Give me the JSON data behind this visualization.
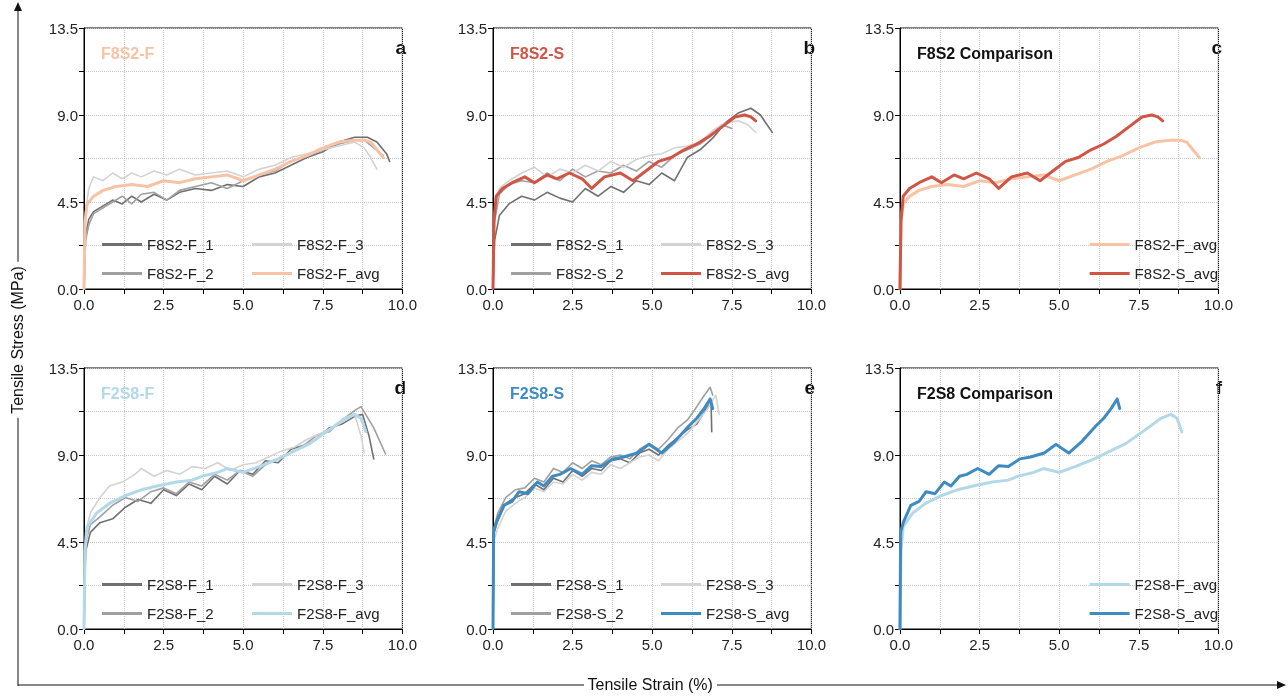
{
  "chart_data": [
    {
      "type": "line",
      "title": "F8S2-F",
      "ylabel": "Tensile Stress (MPa)",
      "annotations": [
        "a"
      ],
      "xlim": [
        0,
        10
      ],
      "ylim": [
        0,
        13.5
      ],
      "xticks": [
        {
          "value": 0,
          "label": "0.0"
        },
        {
          "value": 1.25,
          "label": null
        },
        {
          "value": 2.5,
          "label": "2.5"
        },
        {
          "value": 3.75,
          "label": null
        },
        {
          "value": 5,
          "label": "5.0"
        },
        {
          "value": 6.25,
          "label": null
        },
        {
          "value": 7.5,
          "label": "7.5"
        },
        {
          "value": 8.75,
          "label": null
        },
        {
          "value": 10,
          "label": "10.0"
        }
      ],
      "yticks": [
        {
          "value": 0,
          "label": "0.0"
        },
        {
          "value": 2.25,
          "label": null
        },
        {
          "value": 4.5,
          "label": "4.5"
        },
        {
          "value": 6.75,
          "label": null
        },
        {
          "value": 9,
          "label": "9.0"
        },
        {
          "value": 11.25,
          "label": null
        },
        {
          "value": 13.5,
          "label": "13.5"
        }
      ],
      "grid": true,
      "legend": "bottom",
      "marker": "none",
      "series": [
        {
          "name": "F8S2-F_1",
          "color": "#707070",
          "x": [
            0,
            0.05,
            0.15,
            0.3,
            0.6,
            0.9,
            1.2,
            1.5,
            1.8,
            2.2,
            2.6,
            3.0,
            3.5,
            4.0,
            4.5,
            5.0,
            5.5,
            6.0,
            6.5,
            7.0,
            7.5,
            8.0,
            8.5,
            8.9,
            9.2,
            9.5,
            9.6
          ],
          "values": [
            0,
            2.8,
            3.6,
            4.0,
            4.3,
            4.6,
            4.4,
            4.8,
            4.5,
            4.9,
            4.6,
            5.0,
            5.2,
            5.1,
            5.4,
            5.3,
            5.8,
            6.0,
            6.4,
            6.8,
            7.1,
            7.6,
            7.85,
            7.85,
            7.6,
            7.0,
            6.6
          ]
        },
        {
          "name": "F8S2-F_2",
          "color": "#a0a0a0",
          "x": [
            0,
            0.05,
            0.15,
            0.3,
            0.6,
            0.9,
            1.2,
            1.5,
            1.8,
            2.2,
            2.6,
            3.0,
            3.5,
            4.0,
            4.5,
            5.0,
            5.5,
            6.0,
            6.5,
            7.0,
            7.5,
            8.0,
            8.5,
            8.8,
            9.1,
            9.4
          ],
          "values": [
            0,
            2.5,
            3.3,
            3.9,
            4.2,
            4.5,
            4.8,
            4.4,
            4.9,
            5.0,
            4.6,
            5.1,
            5.3,
            5.5,
            5.2,
            5.6,
            5.9,
            6.1,
            6.6,
            6.9,
            7.2,
            7.5,
            7.7,
            7.7,
            7.3,
            6.9
          ]
        },
        {
          "name": "F8S2-F_3",
          "color": "#d3d3d3",
          "x": [
            0,
            0.05,
            0.15,
            0.3,
            0.6,
            0.9,
            1.2,
            1.5,
            1.8,
            2.2,
            2.6,
            3.0,
            3.5,
            4.0,
            4.5,
            5.0,
            5.5,
            6.0,
            6.5,
            7.0,
            7.5,
            8.0,
            8.5,
            8.8,
            9.0,
            9.2
          ],
          "values": [
            0,
            4.0,
            5.2,
            5.8,
            5.6,
            6.0,
            5.7,
            6.0,
            5.8,
            6.1,
            5.9,
            6.2,
            5.9,
            6.0,
            6.1,
            5.8,
            6.2,
            6.4,
            6.8,
            7.0,
            7.2,
            7.4,
            7.6,
            7.3,
            6.8,
            6.2
          ]
        },
        {
          "name": "F8S2-F_avg",
          "color": "#f8c3a5",
          "x": [
            0,
            0.03,
            0.1,
            0.3,
            0.6,
            1.0,
            1.5,
            2.0,
            2.5,
            3.0,
            3.5,
            4.0,
            4.5,
            5.0,
            5.5,
            6.0,
            6.5,
            7.0,
            7.5,
            8.0,
            8.5,
            8.8,
            9.0,
            9.2,
            9.4
          ],
          "values": [
            0,
            3.5,
            4.4,
            4.8,
            5.1,
            5.3,
            5.4,
            5.3,
            5.6,
            5.5,
            5.7,
            5.8,
            5.9,
            5.6,
            5.9,
            6.2,
            6.6,
            6.9,
            7.3,
            7.6,
            7.7,
            7.7,
            7.6,
            7.2,
            6.8
          ]
        }
      ]
    },
    {
      "type": "line",
      "title": "F8S2-S",
      "annotations": [
        "b"
      ],
      "xlim": [
        0,
        10
      ],
      "ylim": [
        0,
        13.5
      ],
      "xticks": [
        {
          "value": 0,
          "label": "0.0"
        },
        {
          "value": 1.25,
          "label": null
        },
        {
          "value": 2.5,
          "label": "2.5"
        },
        {
          "value": 3.75,
          "label": null
        },
        {
          "value": 5,
          "label": "5.0"
        },
        {
          "value": 6.25,
          "label": null
        },
        {
          "value": 7.5,
          "label": "7.5"
        },
        {
          "value": 8.75,
          "label": null
        },
        {
          "value": 10,
          "label": "10.0"
        }
      ],
      "yticks": [
        {
          "value": 0,
          "label": "0.0"
        },
        {
          "value": 2.25,
          "label": null
        },
        {
          "value": 4.5,
          "label": "4.5"
        },
        {
          "value": 6.75,
          "label": null
        },
        {
          "value": 9,
          "label": "9.0"
        },
        {
          "value": 11.25,
          "label": null
        },
        {
          "value": 13.5,
          "label": "13.5"
        }
      ],
      "grid": true,
      "legend": "bottom",
      "marker": "none",
      "series": [
        {
          "name": "F8S2-S_1",
          "color": "#707070",
          "x": [
            0,
            0.05,
            0.2,
            0.5,
            0.9,
            1.3,
            1.7,
            2.1,
            2.5,
            2.9,
            3.3,
            3.7,
            4.1,
            4.5,
            4.9,
            5.3,
            5.7,
            6.1,
            6.5,
            6.9,
            7.3,
            7.7,
            8.1,
            8.4,
            8.77
          ],
          "values": [
            0,
            2.5,
            3.8,
            4.4,
            4.8,
            4.6,
            5.0,
            4.7,
            4.5,
            5.2,
            4.8,
            5.3,
            5.0,
            5.6,
            5.4,
            6.0,
            5.6,
            6.8,
            7.2,
            7.8,
            8.6,
            9.1,
            9.35,
            9.0,
            8.1
          ]
        },
        {
          "name": "F8S2-S_2",
          "color": "#a0a0a0",
          "x": [
            0,
            0.05,
            0.2,
            0.5,
            0.9,
            1.3,
            1.7,
            2.1,
            2.5,
            2.9,
            3.3,
            3.7,
            4.1,
            4.5,
            4.9,
            5.3,
            5.7,
            6.1,
            6.5,
            6.9,
            7.2,
            7.5
          ],
          "values": [
            0,
            3.5,
            4.9,
            5.4,
            5.6,
            5.5,
            6.0,
            5.6,
            6.2,
            5.8,
            6.1,
            6.0,
            6.4,
            6.1,
            6.6,
            6.3,
            6.9,
            7.2,
            7.5,
            8.0,
            8.5,
            8.3
          ]
        },
        {
          "name": "F8S2-S_3",
          "color": "#d3d3d3",
          "x": [
            0,
            0.05,
            0.2,
            0.5,
            0.9,
            1.3,
            1.7,
            2.1,
            2.5,
            2.9,
            3.3,
            3.7,
            4.1,
            4.5,
            4.9,
            5.3,
            5.7,
            6.1,
            6.5,
            6.9,
            7.3,
            7.7,
            8.0,
            8.25
          ],
          "values": [
            0,
            4.0,
            5.2,
            5.6,
            6.0,
            6.3,
            5.8,
            6.2,
            6.0,
            6.4,
            6.1,
            6.6,
            6.3,
            6.7,
            6.9,
            7.0,
            7.3,
            7.4,
            7.6,
            8.2,
            8.6,
            8.7,
            8.5,
            8.1
          ]
        },
        {
          "name": "F8S2-S_avg",
          "color": "#d05545",
          "x": [
            0,
            0.03,
            0.1,
            0.3,
            0.6,
            1.0,
            1.3,
            1.7,
            2.0,
            2.4,
            2.8,
            3.1,
            3.5,
            4.0,
            4.4,
            4.8,
            5.2,
            5.6,
            6.0,
            6.4,
            6.8,
            7.2,
            7.6,
            7.9,
            8.1,
            8.25
          ],
          "values": [
            0,
            3.5,
            4.8,
            5.2,
            5.5,
            5.8,
            5.5,
            5.9,
            5.7,
            6.0,
            5.7,
            5.2,
            5.8,
            6.0,
            5.6,
            6.1,
            6.6,
            6.8,
            7.2,
            7.5,
            7.9,
            8.4,
            8.9,
            9.0,
            8.9,
            8.7
          ]
        }
      ]
    },
    {
      "type": "line",
      "title": "F8S2 Comparison",
      "annotations": [
        "c"
      ],
      "xlim": [
        0,
        10
      ],
      "ylim": [
        0,
        13.5
      ],
      "xticks": [
        {
          "value": 0,
          "label": "0.0"
        },
        {
          "value": 1.25,
          "label": null
        },
        {
          "value": 2.5,
          "label": "2.5"
        },
        {
          "value": 3.75,
          "label": null
        },
        {
          "value": 5,
          "label": "5.0"
        },
        {
          "value": 6.25,
          "label": null
        },
        {
          "value": 7.5,
          "label": "7.5"
        },
        {
          "value": 8.75,
          "label": null
        },
        {
          "value": 10,
          "label": "10.0"
        }
      ],
      "yticks": [
        {
          "value": 0,
          "label": "0.0"
        },
        {
          "value": 2.25,
          "label": null
        },
        {
          "value": 4.5,
          "label": "4.5"
        },
        {
          "value": 6.75,
          "label": null
        },
        {
          "value": 9,
          "label": "9.0"
        },
        {
          "value": 11.25,
          "label": null
        },
        {
          "value": 13.5,
          "label": "13.5"
        }
      ],
      "grid": true,
      "legend": "bottom right",
      "marker": "none",
      "series": [
        {
          "name": "F8S2-F_avg",
          "color": "#f8c3a5",
          "x": [
            0,
            0.03,
            0.1,
            0.3,
            0.6,
            1.0,
            1.5,
            2.0,
            2.5,
            3.0,
            3.5,
            4.0,
            4.5,
            5.0,
            5.5,
            6.0,
            6.5,
            7.0,
            7.5,
            8.0,
            8.5,
            8.8,
            9.0,
            9.2,
            9.4
          ],
          "values": [
            0,
            3.5,
            4.4,
            4.8,
            5.1,
            5.3,
            5.4,
            5.3,
            5.6,
            5.5,
            5.7,
            5.8,
            5.9,
            5.6,
            5.9,
            6.2,
            6.6,
            6.9,
            7.3,
            7.6,
            7.7,
            7.7,
            7.6,
            7.2,
            6.8
          ]
        },
        {
          "name": "F8S2-S_avg",
          "color": "#d05545",
          "x": [
            0,
            0.03,
            0.1,
            0.3,
            0.6,
            1.0,
            1.3,
            1.7,
            2.0,
            2.4,
            2.8,
            3.1,
            3.5,
            4.0,
            4.4,
            4.8,
            5.2,
            5.6,
            6.0,
            6.4,
            6.8,
            7.2,
            7.6,
            7.9,
            8.1,
            8.25
          ],
          "values": [
            0,
            3.5,
            4.8,
            5.2,
            5.5,
            5.8,
            5.5,
            5.9,
            5.7,
            6.0,
            5.7,
            5.2,
            5.8,
            6.0,
            5.6,
            6.1,
            6.6,
            6.8,
            7.2,
            7.5,
            7.9,
            8.4,
            8.9,
            9.0,
            8.9,
            8.7
          ]
        }
      ]
    },
    {
      "type": "line",
      "title": "F2S8-F",
      "annotations": [
        "d"
      ],
      "xlim": [
        0,
        10
      ],
      "ylim": [
        0,
        13.5
      ],
      "xticks": [
        {
          "value": 0,
          "label": "0.0"
        },
        {
          "value": 1.25,
          "label": null
        },
        {
          "value": 2.5,
          "label": "2.5"
        },
        {
          "value": 3.75,
          "label": null
        },
        {
          "value": 5,
          "label": "5.0"
        },
        {
          "value": 6.25,
          "label": null
        },
        {
          "value": 7.5,
          "label": "7.5"
        },
        {
          "value": 8.75,
          "label": null
        },
        {
          "value": 10,
          "label": "10.0"
        }
      ],
      "yticks": [
        {
          "value": 0,
          "label": "0.0"
        },
        {
          "value": 2.25,
          "label": null
        },
        {
          "value": 4.5,
          "label": "4.5"
        },
        {
          "value": 6.75,
          "label": null
        },
        {
          "value": 9,
          "label": "9.0"
        },
        {
          "value": 11.25,
          "label": null
        },
        {
          "value": 13.5,
          "label": "13.5"
        }
      ],
      "grid": true,
      "legend": "bottom",
      "marker": "none",
      "series": [
        {
          "name": "F2S8-F_1",
          "color": "#707070",
          "x": [
            0,
            0.05,
            0.2,
            0.5,
            0.9,
            1.3,
            1.7,
            2.1,
            2.5,
            2.9,
            3.3,
            3.7,
            4.1,
            4.5,
            4.9,
            5.3,
            5.7,
            6.1,
            6.5,
            6.9,
            7.3,
            7.7,
            8.1,
            8.5,
            8.75,
            8.95,
            9.1
          ],
          "values": [
            0,
            4.0,
            5.0,
            5.5,
            5.7,
            6.3,
            6.7,
            6.5,
            7.2,
            6.9,
            7.5,
            7.2,
            7.9,
            7.5,
            8.2,
            8.0,
            8.7,
            8.6,
            9.3,
            9.5,
            9.8,
            10.4,
            10.6,
            11.0,
            11.1,
            10.0,
            8.8
          ]
        },
        {
          "name": "F2S8-F_2",
          "color": "#a0a0a0",
          "x": [
            0,
            0.05,
            0.2,
            0.5,
            0.9,
            1.3,
            1.7,
            2.1,
            2.5,
            2.9,
            3.3,
            3.7,
            4.1,
            4.5,
            4.9,
            5.3,
            5.7,
            6.1,
            6.5,
            6.9,
            7.3,
            7.7,
            8.1,
            8.5,
            8.7,
            9.1,
            9.47
          ],
          "values": [
            0,
            4.5,
            5.4,
            5.8,
            6.4,
            6.8,
            6.6,
            7.1,
            7.3,
            7.0,
            7.6,
            7.4,
            8.0,
            7.7,
            8.2,
            7.9,
            8.5,
            8.8,
            9.1,
            9.5,
            10.0,
            10.2,
            10.8,
            11.3,
            11.5,
            10.4,
            9.05
          ]
        },
        {
          "name": "F2S8-F_3",
          "color": "#d3d3d3",
          "x": [
            0,
            0.05,
            0.2,
            0.5,
            0.8,
            1.2,
            1.6,
            1.8,
            2.2,
            2.6,
            3.0,
            3.4,
            3.8,
            4.2,
            4.6,
            5.0,
            5.4,
            5.8,
            6.2,
            6.6,
            7.0,
            7.4,
            7.8,
            8.2,
            8.5,
            8.7,
            8.8
          ],
          "values": [
            0,
            5.0,
            6.0,
            6.8,
            7.4,
            7.6,
            8.0,
            8.3,
            7.9,
            8.2,
            8.0,
            8.4,
            8.3,
            8.6,
            8.2,
            8.5,
            8.6,
            8.9,
            9.2,
            9.4,
            9.8,
            10.1,
            10.4,
            10.8,
            11.1,
            10.0,
            9.1
          ]
        },
        {
          "name": "F2S8-F_avg",
          "color": "#b3d8e8",
          "x": [
            0,
            0.03,
            0.1,
            0.4,
            0.8,
            1.3,
            1.8,
            2.3,
            2.9,
            3.4,
            3.7,
            4.2,
            4.5,
            5.0,
            5.5,
            6.1,
            6.6,
            7.1,
            7.7,
            8.2,
            8.5,
            8.7,
            8.85
          ],
          "values": [
            0,
            4.0,
            5.3,
            6.0,
            6.5,
            6.9,
            7.2,
            7.4,
            7.6,
            7.7,
            7.9,
            8.1,
            8.3,
            8.1,
            8.4,
            8.8,
            9.2,
            9.6,
            10.3,
            10.9,
            11.1,
            10.9,
            10.2
          ]
        }
      ]
    },
    {
      "type": "line",
      "title": "F2S8-S",
      "xlabel": "Tensile Strain (%)",
      "annotations": [
        "e"
      ],
      "xlim": [
        0,
        10
      ],
      "ylim": [
        0,
        13.5
      ],
      "xticks": [
        {
          "value": 0,
          "label": "0.0"
        },
        {
          "value": 1.25,
          "label": null
        },
        {
          "value": 2.5,
          "label": "2.5"
        },
        {
          "value": 3.75,
          "label": null
        },
        {
          "value": 5,
          "label": "5.0"
        },
        {
          "value": 6.25,
          "label": null
        },
        {
          "value": 7.5,
          "label": "7.5"
        },
        {
          "value": 8.75,
          "label": null
        },
        {
          "value": 10,
          "label": "10.0"
        }
      ],
      "yticks": [
        {
          "value": 0,
          "label": "0.0"
        },
        {
          "value": 2.25,
          "label": null
        },
        {
          "value": 4.5,
          "label": "4.5"
        },
        {
          "value": 6.75,
          "label": null
        },
        {
          "value": 9,
          "label": "9.0"
        },
        {
          "value": 11.25,
          "label": null
        },
        {
          "value": 13.5,
          "label": "13.5"
        }
      ],
      "grid": true,
      "legend": "bottom",
      "marker": "none",
      "series": [
        {
          "name": "F2S8-S_1",
          "color": "#707070",
          "x": [
            0,
            0.03,
            0.15,
            0.4,
            0.7,
            1.0,
            1.3,
            1.6,
            1.9,
            2.2,
            2.5,
            2.8,
            3.1,
            3.4,
            3.7,
            4.0,
            4.3,
            4.6,
            4.9,
            5.2,
            5.5,
            5.8,
            6.1,
            6.4,
            6.7,
            6.85,
            6.87
          ],
          "values": [
            0,
            5.0,
            5.6,
            6.5,
            6.8,
            7.0,
            7.5,
            7.2,
            7.8,
            7.6,
            8.2,
            7.9,
            8.3,
            8.2,
            8.7,
            8.8,
            8.6,
            9.1,
            9.3,
            9.0,
            9.5,
            9.9,
            10.3,
            10.6,
            11.4,
            11.7,
            10.2
          ]
        },
        {
          "name": "F2S8-S_2",
          "color": "#a0a0a0",
          "x": [
            0,
            0.03,
            0.15,
            0.4,
            0.7,
            1.0,
            1.3,
            1.6,
            1.9,
            2.2,
            2.5,
            2.8,
            3.1,
            3.4,
            3.7,
            4.0,
            4.3,
            4.6,
            4.9,
            5.2,
            5.5,
            5.8,
            6.1,
            6.4,
            6.6,
            6.82,
            6.9
          ],
          "values": [
            0,
            5.2,
            6.0,
            6.8,
            7.2,
            7.3,
            7.8,
            7.6,
            8.3,
            8.1,
            8.6,
            8.3,
            8.7,
            8.5,
            8.9,
            9.0,
            8.8,
            9.3,
            9.6,
            9.3,
            9.8,
            10.4,
            10.8,
            11.5,
            12.0,
            12.5,
            12.1
          ]
        },
        {
          "name": "F2S8-S_3",
          "color": "#d3d3d3",
          "x": [
            0,
            0.03,
            0.15,
            0.4,
            0.7,
            1.0,
            1.3,
            1.6,
            1.9,
            2.2,
            2.5,
            2.8,
            3.1,
            3.4,
            3.7,
            4.0,
            4.3,
            4.6,
            4.9,
            5.2,
            5.5,
            5.8,
            6.1,
            6.4,
            6.7,
            7.0,
            7.1
          ],
          "values": [
            0,
            4.6,
            5.2,
            6.1,
            6.5,
            6.8,
            7.3,
            7.1,
            7.6,
            7.5,
            8.0,
            7.7,
            8.1,
            8.0,
            8.5,
            8.3,
            8.6,
            8.9,
            9.0,
            8.7,
            9.3,
            9.7,
            10.1,
            10.7,
            11.3,
            12.1,
            11.1
          ]
        },
        {
          "name": "F2S8-S_avg",
          "color": "#3d8bc1",
          "x": [
            0,
            0.02,
            0.1,
            0.34,
            0.6,
            0.82,
            1.1,
            1.39,
            1.6,
            1.87,
            2.1,
            2.44,
            2.8,
            3.1,
            3.4,
            3.77,
            4.1,
            4.53,
            4.9,
            5.3,
            5.68,
            6.15,
            6.4,
            6.63,
            6.82,
            6.9
          ],
          "values": [
            0,
            5.0,
            5.5,
            6.4,
            6.6,
            7.1,
            7.0,
            7.6,
            7.4,
            7.9,
            8.0,
            8.3,
            8.0,
            8.45,
            8.4,
            8.8,
            8.9,
            9.1,
            9.55,
            9.1,
            9.65,
            10.5,
            10.9,
            11.4,
            11.9,
            11.4
          ]
        }
      ]
    },
    {
      "type": "line",
      "title": "F2S8 Comparison",
      "annotations": [
        "f"
      ],
      "xlim": [
        0,
        10
      ],
      "ylim": [
        0,
        13.5
      ],
      "xticks": [
        {
          "value": 0,
          "label": "0.0"
        },
        {
          "value": 1.25,
          "label": null
        },
        {
          "value": 2.5,
          "label": "2.5"
        },
        {
          "value": 3.75,
          "label": null
        },
        {
          "value": 5,
          "label": "5.0"
        },
        {
          "value": 6.25,
          "label": null
        },
        {
          "value": 7.5,
          "label": "7.5"
        },
        {
          "value": 8.75,
          "label": null
        },
        {
          "value": 10,
          "label": "10.0"
        }
      ],
      "yticks": [
        {
          "value": 0,
          "label": "0.0"
        },
        {
          "value": 2.25,
          "label": null
        },
        {
          "value": 4.5,
          "label": "4.5"
        },
        {
          "value": 6.75,
          "label": null
        },
        {
          "value": 9,
          "label": "9.0"
        },
        {
          "value": 11.25,
          "label": null
        },
        {
          "value": 13.5,
          "label": "13.5"
        }
      ],
      "grid": true,
      "legend": "bottom right",
      "marker": "none",
      "series": [
        {
          "name": "F2S8-F_avg",
          "color": "#b3d8e8",
          "x": [
            0,
            0.03,
            0.1,
            0.4,
            0.8,
            1.3,
            1.8,
            2.3,
            2.9,
            3.4,
            3.7,
            4.2,
            4.5,
            5.0,
            5.5,
            6.1,
            6.6,
            7.1,
            7.7,
            8.2,
            8.5,
            8.7,
            8.85
          ],
          "values": [
            0,
            4.0,
            5.3,
            6.0,
            6.5,
            6.9,
            7.2,
            7.4,
            7.6,
            7.7,
            7.9,
            8.1,
            8.3,
            8.1,
            8.4,
            8.8,
            9.2,
            9.6,
            10.3,
            10.9,
            11.1,
            10.9,
            10.2
          ]
        },
        {
          "name": "F2S8-S_avg",
          "color": "#3d8bc1",
          "x": [
            0,
            0.02,
            0.1,
            0.34,
            0.6,
            0.82,
            1.1,
            1.39,
            1.6,
            1.87,
            2.1,
            2.44,
            2.8,
            3.1,
            3.4,
            3.77,
            4.1,
            4.53,
            4.9,
            5.3,
            5.68,
            6.15,
            6.4,
            6.63,
            6.82,
            6.9
          ],
          "values": [
            0,
            5.0,
            5.5,
            6.4,
            6.6,
            7.1,
            7.0,
            7.6,
            7.4,
            7.9,
            8.0,
            8.3,
            8.0,
            8.45,
            8.4,
            8.8,
            8.9,
            9.1,
            9.55,
            9.1,
            9.65,
            10.5,
            10.9,
            11.4,
            11.9,
            11.4
          ]
        }
      ]
    }
  ]
}
